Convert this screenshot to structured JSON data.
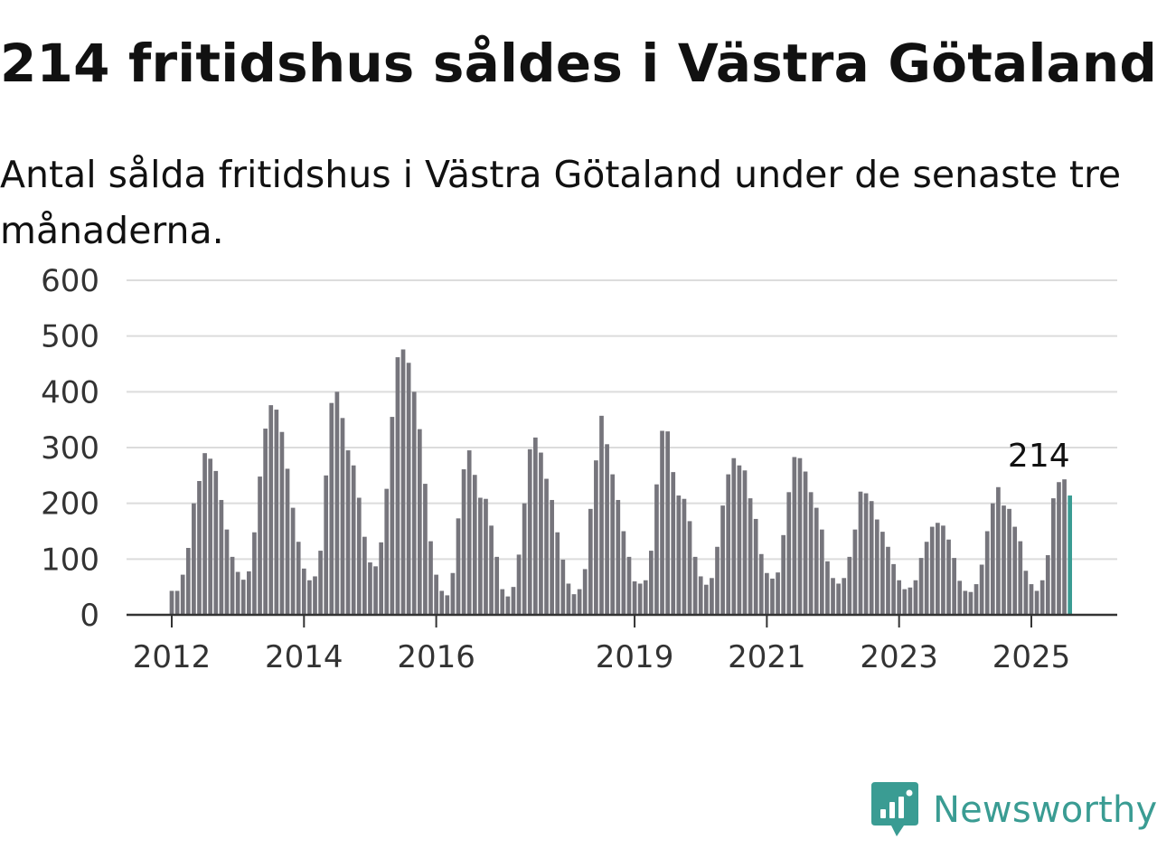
{
  "header": {
    "title": "214 fritidshus såldes i Västra Götaland",
    "subtitle": "Antal sålda fritidshus i Västra Götaland under de senaste tre månaderna."
  },
  "brand": {
    "name": "Newsworthy",
    "color": "#3a9c93"
  },
  "chart_data": {
    "type": "bar",
    "x_unit": "month",
    "x_start": "2012-01",
    "ylim": [
      0,
      600
    ],
    "yticks": [
      0,
      100,
      200,
      300,
      400,
      500,
      600
    ],
    "xticks": [
      {
        "label": "2012",
        "index": 0
      },
      {
        "label": "2014",
        "index": 24
      },
      {
        "label": "2016",
        "index": 48
      },
      {
        "label": "2019",
        "index": 84
      },
      {
        "label": "2021",
        "index": 108
      },
      {
        "label": "2023",
        "index": 132
      },
      {
        "label": "2025",
        "index": 156
      }
    ],
    "bar_color": "#76757c",
    "highlight_color": "#3a9c93",
    "highlight_index": 163,
    "highlight_label": "214",
    "grid": true,
    "values": [
      43,
      43,
      72,
      120,
      200,
      240,
      290,
      280,
      258,
      206,
      153,
      104,
      77,
      63,
      78,
      148,
      248,
      334,
      376,
      368,
      328,
      262,
      192,
      131,
      83,
      62,
      69,
      115,
      250,
      380,
      400,
      353,
      295,
      268,
      210,
      140,
      94,
      87,
      130,
      226,
      355,
      462,
      476,
      452,
      400,
      333,
      235,
      132,
      72,
      43,
      35,
      75,
      173,
      261,
      295,
      251,
      210,
      208,
      160,
      104,
      46,
      33,
      50,
      108,
      200,
      297,
      318,
      291,
      244,
      206,
      148,
      99,
      56,
      37,
      46,
      82,
      190,
      277,
      357,
      306,
      252,
      206,
      150,
      104,
      60,
      56,
      62,
      115,
      234,
      330,
      329,
      256,
      214,
      208,
      168,
      104,
      69,
      54,
      66,
      122,
      196,
      252,
      281,
      268,
      259,
      209,
      172,
      109,
      75,
      65,
      76,
      143,
      220,
      283,
      281,
      257,
      220,
      192,
      153,
      96,
      66,
      56,
      66,
      104,
      153,
      221,
      218,
      204,
      171,
      149,
      122,
      91,
      62,
      46,
      49,
      62,
      102,
      131,
      158,
      165,
      160,
      135,
      102,
      61,
      43,
      41,
      55,
      90,
      150,
      200,
      229,
      196,
      190,
      158,
      132,
      79,
      55,
      43,
      62,
      107,
      209,
      238,
      243,
      214
    ]
  }
}
